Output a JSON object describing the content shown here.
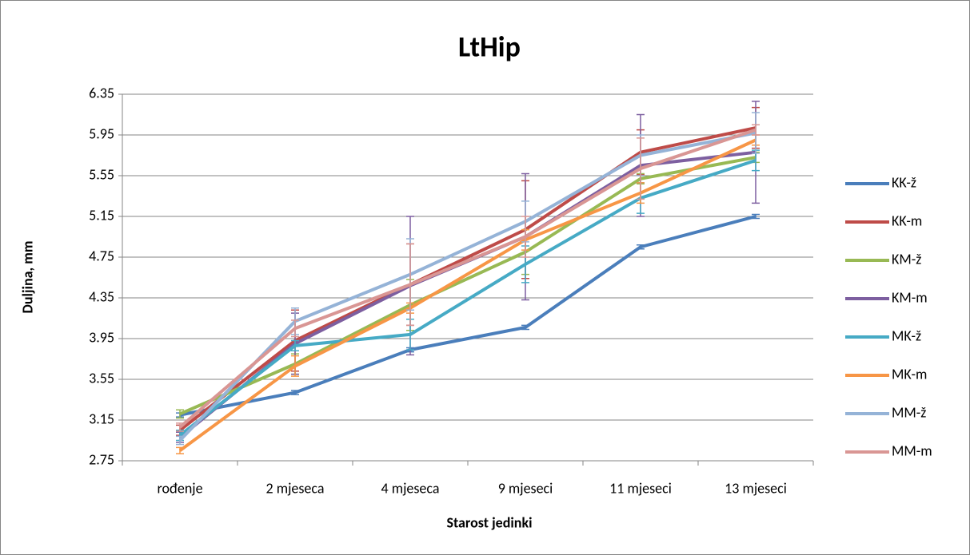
{
  "chart_data": {
    "type": "line",
    "title": "LtHip",
    "x_label": "Starost jedinki",
    "y_label": "Duljina, mm",
    "categories": [
      "rođenje",
      "2 mjeseca",
      "4 mjeseca",
      "9 mjeseci",
      "11 mjeseci",
      "13 mjeseci"
    ],
    "ylim": [
      2.75,
      6.35
    ],
    "yticks": [
      2.75,
      3.15,
      3.55,
      3.95,
      4.35,
      4.75,
      5.15,
      5.55,
      5.95,
      6.35
    ],
    "grid": true,
    "legend": "right",
    "series": [
      {
        "name": "KK-ž",
        "color": "#4a7ebb",
        "values": [
          3.2,
          3.42,
          3.84,
          4.06,
          4.85,
          5.15
        ],
        "errors": [
          0.02,
          0.02,
          0.02,
          0.02,
          0.02,
          0.02
        ]
      },
      {
        "name": "KK-m",
        "color": "#be4b48",
        "values": [
          3.05,
          3.93,
          4.48,
          5.02,
          5.78,
          6.02
        ],
        "errors": [
          0.05,
          0.3,
          0.4,
          0.48,
          0.22,
          0.2
        ]
      },
      {
        "name": "KM-ž",
        "color": "#98b954",
        "values": [
          3.21,
          3.7,
          4.28,
          4.8,
          5.52,
          5.73
        ],
        "errors": [
          0.04,
          0.1,
          0.25,
          0.22,
          0.05,
          0.05
        ]
      },
      {
        "name": "KM-m",
        "color": "#7d5fa0",
        "values": [
          2.98,
          3.9,
          4.47,
          4.95,
          5.65,
          5.78
        ],
        "errors": [
          0.05,
          0.3,
          0.68,
          0.62,
          0.5,
          0.5
        ]
      },
      {
        "name": "MK-ž",
        "color": "#46aac5",
        "values": [
          3.0,
          3.88,
          3.99,
          4.68,
          5.33,
          5.7
        ],
        "errors": [
          0.05,
          0.05,
          0.15,
          0.18,
          0.15,
          0.1
        ]
      },
      {
        "name": "MK-m",
        "color": "#f79646",
        "values": [
          2.85,
          3.68,
          4.25,
          4.92,
          5.38,
          5.9
        ],
        "errors": [
          0.03,
          0.1,
          0.05,
          0.1,
          0.1,
          0.05
        ]
      },
      {
        "name": "MM-ž",
        "color": "#95b3d7",
        "values": [
          2.95,
          4.12,
          4.58,
          5.1,
          5.75,
          5.97
        ],
        "errors": [
          0.04,
          0.13,
          0.35,
          0.2,
          0.2,
          0.2
        ]
      },
      {
        "name": "MM-m",
        "color": "#d99694",
        "values": [
          3.08,
          4.05,
          4.48,
          4.95,
          5.62,
          6.0
        ],
        "errors": [
          0.04,
          0.08,
          0.4,
          0.2,
          0.3,
          0.05
        ]
      }
    ]
  }
}
